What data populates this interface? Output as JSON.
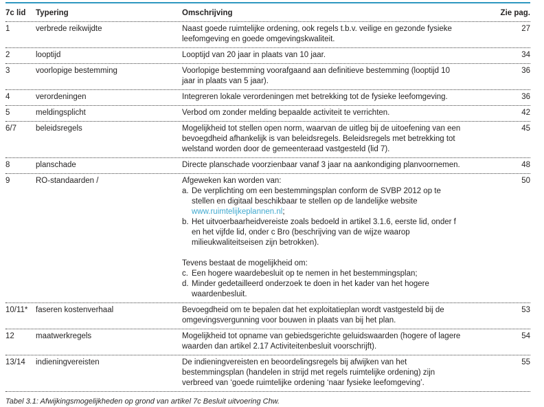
{
  "colors": {
    "accent": "#2e97c0",
    "link": "#3fa9cf"
  },
  "table": {
    "headers": {
      "lid": "7c lid",
      "typering": "Typering",
      "omschrijving": "Omschrijving",
      "pag": "Zie pag."
    },
    "rows": [
      {
        "lid": "1",
        "typering": "verbrede reikwijdte",
        "omschrijving": "Naast goede ruimtelijke ordening, ook regels t.b.v. veilige en gezonde fysieke leefomgeving en goede omgevingskwaliteit.",
        "pag": "27"
      },
      {
        "lid": "2",
        "typering": "looptijd",
        "omschrijving": "Looptijd van 20 jaar in plaats van 10 jaar.",
        "pag": "34"
      },
      {
        "lid": "3",
        "typering": "voorlopige bestemming",
        "omschrijving": "Voorlopige bestemming voorafgaand aan definitieve bestemming (looptijd 10 jaar in plaats van 5 jaar).",
        "pag": "36"
      },
      {
        "lid": "4",
        "typering": "verordeningen",
        "omschrijving": "Integreren lokale verordeningen met betrekking tot de fysieke leefomgeving.",
        "pag": "36"
      },
      {
        "lid": "5",
        "typering": "meldingsplicht",
        "omschrijving": "Verbod om zonder melding bepaalde activiteit te verrichten.",
        "pag": "42"
      },
      {
        "lid": "6/7",
        "typering": "beleidsregels",
        "omschrijving": "Mogelijkheid tot stellen open norm, waarvan de uitleg bij de uitoefening van een bevoegdheid afhankelijk is van beleidsregels. Beleidsregels met betrekking tot welstand worden door de gemeenteraad vastgesteld (lid 7).",
        "pag": "45"
      },
      {
        "lid": "8",
        "typering": "planschade",
        "omschrijving": "Directe planschade voorzienbaar vanaf 3 jaar na aankondiging planvoornemen.",
        "pag": "48"
      },
      {
        "lid": "9",
        "typering": "RO-standaarden /",
        "pag": "50",
        "blocks": [
          {
            "kind": "line",
            "text": "Afgeweken kan worden van:"
          },
          {
            "kind": "item",
            "marker": "a.",
            "text": "De verplichting om een bestemmingsplan conform de SVBP 2012 op te stellen en digitaal beschikbaar te stellen op de landelijke website ",
            "link": "www.ruimtelijkeplannen.nl",
            "after": ";"
          },
          {
            "kind": "item",
            "marker": "b.",
            "text": "Het uitvoerbaarheidvereiste zoals bedoeld in artikel 3.1.6, eerste lid, onder f en het vijfde lid, onder c Bro (beschrijving van de wijze waarop milieukwaliteitseisen zijn betrokken)."
          },
          {
            "kind": "gap"
          },
          {
            "kind": "line",
            "text": "Tevens bestaat de mogelijkheid om:"
          },
          {
            "kind": "item",
            "marker": "c.",
            "text": "Een hogere waardebesluit op te nemen in het bestemmingsplan;"
          },
          {
            "kind": "item",
            "marker": "d.",
            "text": "Minder gedetailleerd onderzoek te doen in het kader van het hogere waardenbesluit."
          }
        ]
      },
      {
        "lid": "10/11*",
        "typering": "faseren kostenverhaal",
        "omschrijving": "Bevoegdheid om te bepalen dat het exploitatieplan wordt vastgesteld bij de omgevingsvergunning voor bouwen in plaats van bij het plan.",
        "pag": "53"
      },
      {
        "lid": "12",
        "typering": "maatwerkregels",
        "omschrijving": "Mogelijkheid tot opname van gebiedsgerichte geluidswaarden (hogere of lagere waarden dan artikel 2.17 Activiteitenbesluit voorschrijft).",
        "pag": "54"
      },
      {
        "lid": "13/14",
        "typering": "indieningvereisten",
        "omschrijving": "De indieningvereisten en beoordelingsregels bij afwijken van het bestemmingsplan (handelen in strijd met regels ruimtelijke ordening) zijn verbreed van ‘goede ruimtelijke ordening ‘naar fysieke leefomgeving’.",
        "pag": "55"
      }
    ]
  },
  "caption": "Tabel 3.1: Afwijkingsmogelijkheden op grond van artikel 7c Besluit uitvoering Chw."
}
